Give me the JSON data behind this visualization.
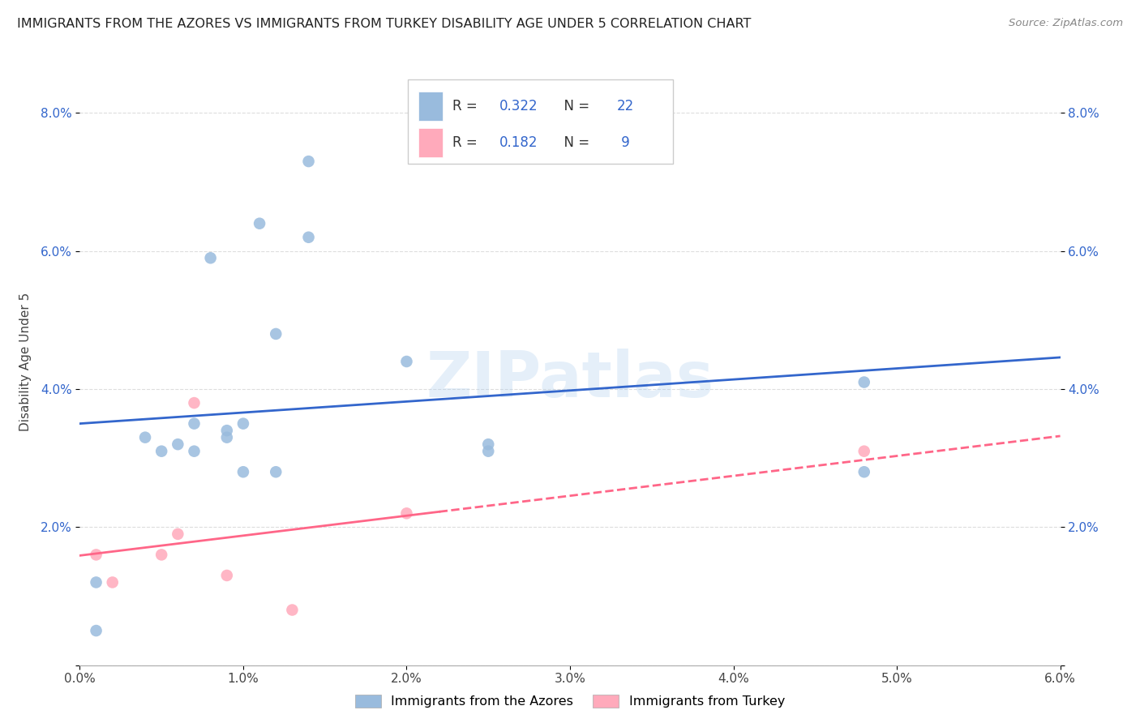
{
  "title": "IMMIGRANTS FROM THE AZORES VS IMMIGRANTS FROM TURKEY DISABILITY AGE UNDER 5 CORRELATION CHART",
  "source": "Source: ZipAtlas.com",
  "ylabel": "Disability Age Under 5",
  "xlim": [
    0.0,
    0.06
  ],
  "ylim": [
    0.0,
    0.088
  ],
  "xticks": [
    0.0,
    0.01,
    0.02,
    0.03,
    0.04,
    0.05,
    0.06
  ],
  "yticks": [
    0.0,
    0.02,
    0.04,
    0.06,
    0.08
  ],
  "xtick_labels": [
    "0.0%",
    "1.0%",
    "2.0%",
    "3.0%",
    "4.0%",
    "5.0%",
    "6.0%"
  ],
  "ytick_labels_left": [
    "",
    "2.0%",
    "4.0%",
    "6.0%",
    "8.0%"
  ],
  "ytick_labels_right": [
    "",
    "2.0%",
    "4.0%",
    "6.0%",
    "8.0%"
  ],
  "legend_labels": [
    "Immigrants from the Azores",
    "Immigrants from Turkey"
  ],
  "blue_scatter_color": "#99BBDD",
  "pink_scatter_color": "#FFAABB",
  "blue_line_color": "#3366CC",
  "pink_line_color": "#FF6688",
  "azores_x": [
    0.001,
    0.001,
    0.004,
    0.005,
    0.006,
    0.007,
    0.007,
    0.008,
    0.009,
    0.009,
    0.01,
    0.01,
    0.011,
    0.012,
    0.012,
    0.014,
    0.014,
    0.02,
    0.025,
    0.025,
    0.048,
    0.048
  ],
  "azores_y": [
    0.005,
    0.012,
    0.033,
    0.031,
    0.032,
    0.035,
    0.031,
    0.059,
    0.033,
    0.034,
    0.035,
    0.028,
    0.064,
    0.048,
    0.028,
    0.073,
    0.062,
    0.044,
    0.031,
    0.032,
    0.041,
    0.028
  ],
  "turkey_x": [
    0.001,
    0.002,
    0.005,
    0.006,
    0.007,
    0.009,
    0.013,
    0.02,
    0.048
  ],
  "turkey_y": [
    0.016,
    0.012,
    0.016,
    0.019,
    0.038,
    0.013,
    0.008,
    0.022,
    0.031
  ],
  "watermark": "ZIPatlas",
  "background_color": "#FFFFFF",
  "grid_color": "#DDDDDD",
  "r_blue": "0.322",
  "n_blue": "22",
  "r_pink": "0.182",
  "n_pink": " 9"
}
